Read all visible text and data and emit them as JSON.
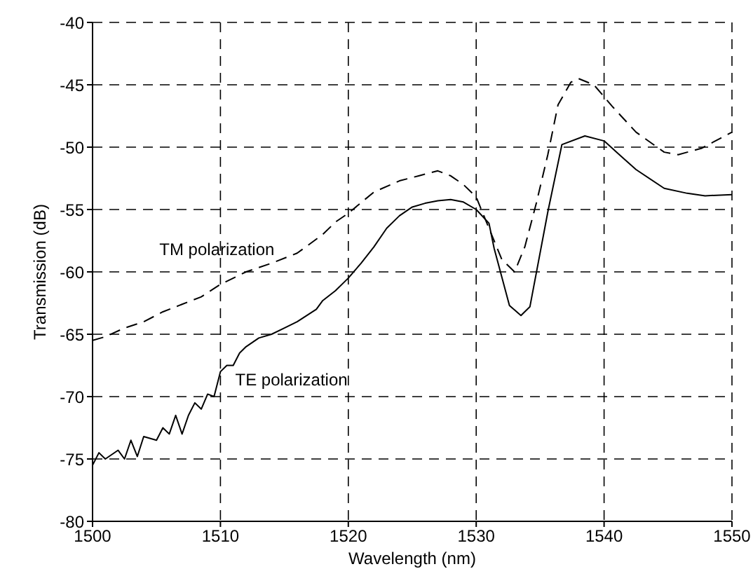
{
  "chart_data": {
    "type": "line",
    "xlabel": "Wavelength (nm)",
    "ylabel": "Transmission (dB)",
    "xlim": [
      1500,
      1550
    ],
    "xticks": [
      1500,
      1510,
      1520,
      1530,
      1540,
      1550
    ],
    "ylim": [
      -80,
      -40
    ],
    "yticks": [
      -80,
      -75,
      -70,
      -65,
      -60,
      -55,
      -50,
      -45,
      -40
    ],
    "grid": true,
    "legend": false,
    "marker": "none",
    "series": [
      {
        "name": "TM polarization",
        "color": "#000000",
        "line_style": "dashed",
        "x": [
          1500,
          1501,
          1502.5,
          1504,
          1505.5,
          1507,
          1508.5,
          1510,
          1512,
          1514,
          1516,
          1518,
          1519,
          1520,
          1522,
          1524,
          1525.5,
          1527,
          1528,
          1529,
          1530,
          1531,
          1532,
          1533,
          1533.8,
          1534.7,
          1535.6,
          1536.4,
          1537.4,
          1538,
          1539.2,
          1540.7,
          1542.5,
          1544.7,
          1545.8,
          1547.6,
          1550
        ],
        "values": [
          -65.5,
          -65.2,
          -64.5,
          -64,
          -63.2,
          -62.6,
          -62,
          -61,
          -60,
          -59.3,
          -58.5,
          -57,
          -56,
          -55.3,
          -53.6,
          -52.7,
          -52.3,
          -51.9,
          -52.3,
          -53,
          -54,
          -56.5,
          -59,
          -60,
          -58,
          -54.5,
          -50.6,
          -46.6,
          -44.8,
          -44.5,
          -45,
          -46.8,
          -48.8,
          -50.4,
          -50.6,
          -50.1,
          -48.8
        ]
      },
      {
        "name": "TE polarization",
        "color": "#000000",
        "line_style": "solid",
        "x": [
          1500,
          1500.5,
          1501,
          1502,
          1502.5,
          1503,
          1503.5,
          1504,
          1505,
          1505.5,
          1506,
          1506.5,
          1507,
          1507.5,
          1508,
          1508.5,
          1509,
          1509.5,
          1510,
          1510.5,
          1511,
          1511.5,
          1512,
          1513,
          1514,
          1515,
          1516,
          1517.5,
          1518,
          1519,
          1520,
          1521,
          1522,
          1523,
          1524,
          1525,
          1526,
          1527,
          1528,
          1529,
          1530,
          1531,
          1531.4,
          1532.6,
          1533.5,
          1534.2,
          1535.6,
          1536.7,
          1538.5,
          1540,
          1541.3,
          1542.5,
          1544.7,
          1546.5,
          1547.9,
          1550
        ],
        "values": [
          -75.5,
          -74.5,
          -75,
          -74.3,
          -75,
          -73.5,
          -74.8,
          -73.2,
          -73.5,
          -72.5,
          -73,
          -71.5,
          -73,
          -71.5,
          -70.5,
          -71,
          -69.8,
          -70,
          -68,
          -67.5,
          -67.5,
          -66.5,
          -66,
          -65.3,
          -65,
          -64.5,
          -64,
          -63,
          -62.3,
          -61.5,
          -60.5,
          -59.3,
          -58,
          -56.5,
          -55.5,
          -54.8,
          -54.5,
          -54.3,
          -54.2,
          -54.4,
          -55,
          -56.1,
          -58.1,
          -62.7,
          -63.5,
          -62.8,
          -55.2,
          -49.8,
          -49.1,
          -49.5,
          -50.7,
          -51.8,
          -53.3,
          -53.7,
          -53.9,
          -53.8
        ]
      }
    ]
  }
}
